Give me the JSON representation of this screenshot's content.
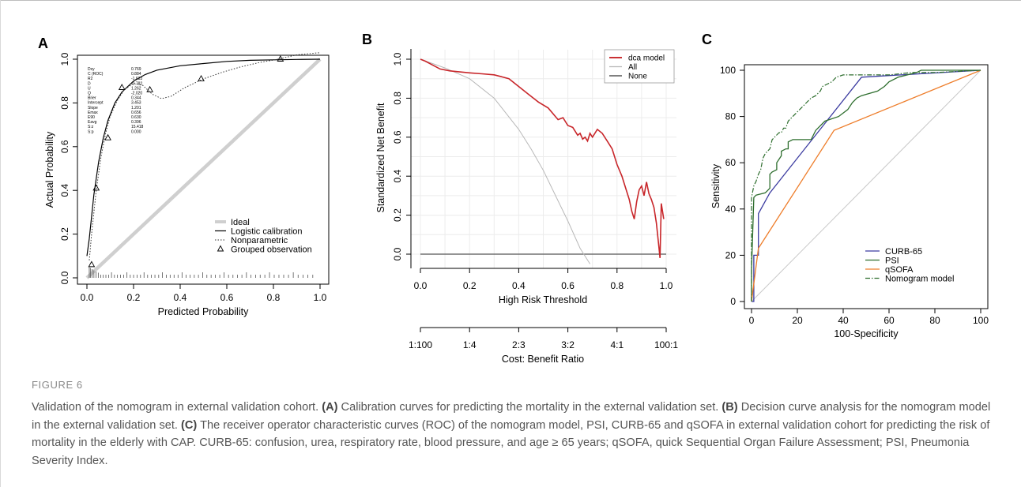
{
  "figure_label": "FIGURE 6",
  "caption": {
    "parts": [
      {
        "t": "Validation of the nomogram in external validation cohort. "
      },
      {
        "t": "(A)",
        "bold": true
      },
      {
        "t": " Calibration curves for predicting the mortality in the external validation set. "
      },
      {
        "t": "(B)",
        "bold": true
      },
      {
        "t": " Decision curve analysis for the nomogram model in the external validation set. "
      },
      {
        "t": "(C)",
        "bold": true
      },
      {
        "t": " The receiver operator characteristic curves (ROC) of the nomogram model, PSI, CURB-65 and qSOFA in external validation cohort for predicting the risk of mortality in the elderly with CAP. CURB-65: confusion, urea, respiratory rate, blood pressure, and age ≥ 65 years; qSOFA, quick Sequential Organ Failure Assessment; PSI, Pneumonia Severity Index."
      }
    ]
  },
  "chart_data": [
    {
      "panel": "A",
      "type": "line",
      "xlabel": "Predicted Probability",
      "ylabel": "Actual Probability",
      "xlim": [
        0,
        1
      ],
      "ylim": [
        0,
        1.05
      ],
      "xticks": [
        "0.0",
        "0.2",
        "0.4",
        "0.6",
        "0.8",
        "1.0"
      ],
      "yticks": [
        "0.0",
        "0.2",
        "0.4",
        "0.6",
        "0.8",
        "1.0"
      ],
      "stats": [
        {
          "name": "Dxy",
          "value": "0.769"
        },
        {
          "name": "C (ROC)",
          "value": "0.884"
        },
        {
          "name": "R2",
          "value": "-1.633"
        },
        {
          "name": "D",
          "value": "-0.782"
        },
        {
          "name": "U",
          "value": "1.262"
        },
        {
          "name": "Q",
          "value": "-2.020"
        },
        {
          "name": "Brier",
          "value": "0.344"
        },
        {
          "name": "Intercept",
          "value": "3.453"
        },
        {
          "name": "Slope",
          "value": "1.201"
        },
        {
          "name": "Emax",
          "value": "0.656"
        },
        {
          "name": "E90",
          "value": "0.630"
        },
        {
          "name": "Eavg",
          "value": "0.396"
        },
        {
          "name": "S:z",
          "value": "15.418"
        },
        {
          "name": "S:p",
          "value": "0.000"
        }
      ],
      "legend": [
        "Ideal",
        "Logistic calibration",
        "Nonparametric",
        "Grouped observation"
      ],
      "series": [
        {
          "name": "Ideal",
          "x": [
            0,
            1
          ],
          "y": [
            0,
            1
          ]
        },
        {
          "name": "Logistic calibration",
          "x": [
            0,
            0.01,
            0.02,
            0.03,
            0.05,
            0.07,
            0.09,
            0.12,
            0.15,
            0.2,
            0.25,
            0.3,
            0.4,
            0.5,
            0.6,
            0.7,
            0.8,
            0.9,
            1.0
          ],
          "y": [
            0.1,
            0.18,
            0.28,
            0.38,
            0.53,
            0.64,
            0.72,
            0.8,
            0.85,
            0.9,
            0.93,
            0.95,
            0.97,
            0.98,
            0.99,
            0.995,
            0.997,
            0.999,
            1.0
          ]
        },
        {
          "name": "Nonparametric",
          "x": [
            0.01,
            0.02,
            0.04,
            0.06,
            0.08,
            0.1,
            0.13,
            0.16,
            0.2,
            0.24,
            0.28,
            0.32,
            0.36,
            0.42,
            0.5,
            0.58,
            0.66,
            0.74,
            0.82,
            0.9,
            1.0
          ],
          "y": [
            0.08,
            0.2,
            0.4,
            0.55,
            0.66,
            0.74,
            0.81,
            0.86,
            0.89,
            0.88,
            0.84,
            0.82,
            0.83,
            0.87,
            0.91,
            0.94,
            0.965,
            0.985,
            1.0,
            1.02,
            1.03
          ]
        },
        {
          "name": "Grouped observation",
          "x": [
            0.02,
            0.04,
            0.09,
            0.15,
            0.27,
            0.49,
            0.83
          ],
          "y": [
            0.06,
            0.41,
            0.64,
            0.87,
            0.86,
            0.91,
            1.0
          ]
        }
      ]
    },
    {
      "panel": "B",
      "type": "line",
      "xlabel": "High Risk Threshold",
      "ylabel": "Standardized Net Benefit",
      "xlabel2": "Cost: Benefit Ratio",
      "xlim": [
        0,
        1
      ],
      "ylim": [
        -0.05,
        1.02
      ],
      "xticks": [
        "0.0",
        "0.2",
        "0.4",
        "0.6",
        "0.8",
        "1.0"
      ],
      "yticks": [
        "0.0",
        "0.2",
        "0.4",
        "0.6",
        "0.8",
        "1.0"
      ],
      "x2ticks": [
        "1:100",
        "1:4",
        "2:3",
        "3:2",
        "4:1",
        "100:1"
      ],
      "legend": [
        "dca model",
        "All",
        "None"
      ],
      "series": [
        {
          "name": "dca model",
          "x": [
            0.0,
            0.02,
            0.05,
            0.08,
            0.12,
            0.16,
            0.2,
            0.25,
            0.3,
            0.33,
            0.36,
            0.4,
            0.44,
            0.48,
            0.52,
            0.56,
            0.58,
            0.6,
            0.62,
            0.64,
            0.65,
            0.66,
            0.67,
            0.68,
            0.69,
            0.7,
            0.72,
            0.74,
            0.76,
            0.78,
            0.8,
            0.82,
            0.83,
            0.84,
            0.85,
            0.86,
            0.87,
            0.88,
            0.89,
            0.9,
            0.91,
            0.92,
            0.93,
            0.94,
            0.95,
            0.96,
            0.97,
            0.975,
            0.98,
            0.99
          ],
          "y": [
            1.0,
            0.99,
            0.97,
            0.95,
            0.94,
            0.935,
            0.93,
            0.925,
            0.92,
            0.91,
            0.9,
            0.86,
            0.82,
            0.78,
            0.75,
            0.69,
            0.7,
            0.66,
            0.65,
            0.61,
            0.62,
            0.59,
            0.6,
            0.58,
            0.62,
            0.6,
            0.64,
            0.62,
            0.58,
            0.54,
            0.46,
            0.4,
            0.36,
            0.32,
            0.28,
            0.22,
            0.18,
            0.27,
            0.33,
            0.35,
            0.3,
            0.37,
            0.31,
            0.28,
            0.24,
            0.16,
            0.04,
            -0.02,
            0.26,
            0.18
          ]
        },
        {
          "name": "All",
          "x": [
            0.0,
            0.1,
            0.2,
            0.3,
            0.4,
            0.45,
            0.5,
            0.55,
            0.6,
            0.65,
            0.69
          ],
          "y": [
            1.0,
            0.955,
            0.9,
            0.8,
            0.64,
            0.54,
            0.43,
            0.3,
            0.17,
            0.03,
            -0.05
          ]
        },
        {
          "name": "None",
          "x": [
            0.0,
            1.0
          ],
          "y": [
            0.0,
            0.0
          ]
        }
      ]
    },
    {
      "panel": "C",
      "type": "line",
      "xlabel": "100-Specificity",
      "ylabel": "Sensitivity",
      "xlim": [
        0,
        100
      ],
      "ylim": [
        0,
        100
      ],
      "xticks": [
        "0",
        "20",
        "40",
        "60",
        "80",
        "100"
      ],
      "yticks": [
        "0",
        "20",
        "40",
        "60",
        "80",
        "100"
      ],
      "legend": [
        "CURB-65",
        "PSI",
        "qSOFA",
        "Nomogram model"
      ],
      "series": [
        {
          "name": "CURB-65",
          "x": [
            0,
            1,
            1,
            3,
            3,
            8,
            48,
            100
          ],
          "y": [
            0,
            0,
            20,
            20,
            38,
            47,
            97,
            100
          ]
        },
        {
          "name": "PSI",
          "x": [
            0,
            0,
            1,
            2,
            6,
            7,
            8,
            8,
            9,
            11,
            11,
            13,
            13,
            15,
            16,
            16,
            18,
            21,
            26,
            28,
            32,
            38,
            42,
            44,
            46,
            48,
            55,
            58,
            60,
            64,
            68,
            72,
            74,
            100
          ],
          "y": [
            0,
            14,
            45,
            46,
            47,
            48,
            49,
            55,
            56,
            57,
            60,
            63,
            65,
            66,
            66,
            69,
            70,
            70,
            70,
            74,
            78,
            80,
            83,
            86,
            88,
            89,
            91,
            93,
            95,
            97,
            98,
            99,
            100,
            100
          ]
        },
        {
          "name": "qSOFA",
          "x": [
            0,
            3,
            36,
            100
          ],
          "y": [
            0,
            23,
            74,
            100
          ]
        },
        {
          "name": "Nomogram model",
          "x": [
            0,
            0,
            1,
            2,
            3,
            4,
            5,
            6,
            7,
            8,
            9,
            10,
            11,
            12,
            13,
            14,
            15,
            16,
            17,
            18,
            20,
            22,
            24,
            26,
            28,
            30,
            31,
            33,
            35,
            37,
            40,
            45,
            50,
            60,
            70,
            80,
            100
          ],
          "y": [
            0,
            45,
            50,
            52,
            55,
            57,
            62,
            64,
            65,
            66,
            70,
            71,
            72,
            73,
            73,
            75,
            75,
            78,
            79,
            80,
            82,
            84,
            86,
            88,
            89,
            91,
            93,
            94,
            95,
            97,
            98,
            98,
            98,
            98,
            99,
            99,
            100
          ]
        }
      ]
    }
  ]
}
